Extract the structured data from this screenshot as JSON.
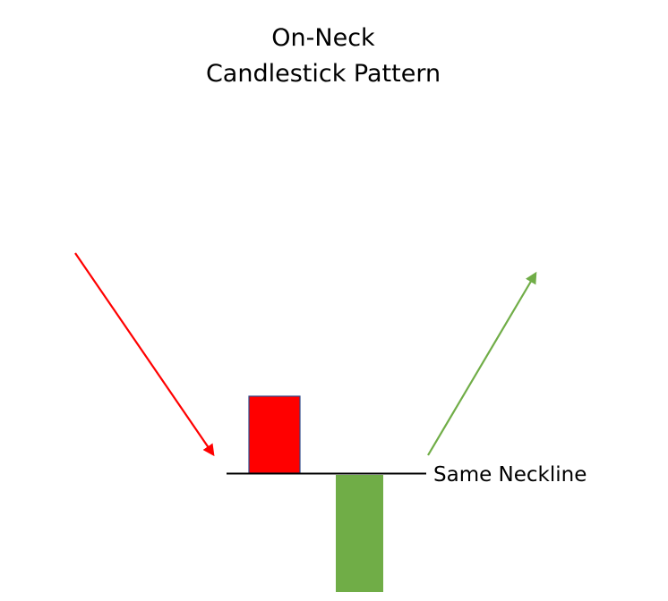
{
  "title": {
    "line1": "On-Neck",
    "line2": "Candlestick Pattern"
  },
  "neckline": {
    "label": "Same Neckline"
  },
  "colors": {
    "bearish_candle": "#ff0000",
    "bearish_candle_border": "#2f4a8a",
    "bullish_candle": "#70ad47",
    "downtrend_arrow": "#ff0000",
    "uptrend_arrow": "#70ad47",
    "neckline": "#000000"
  }
}
